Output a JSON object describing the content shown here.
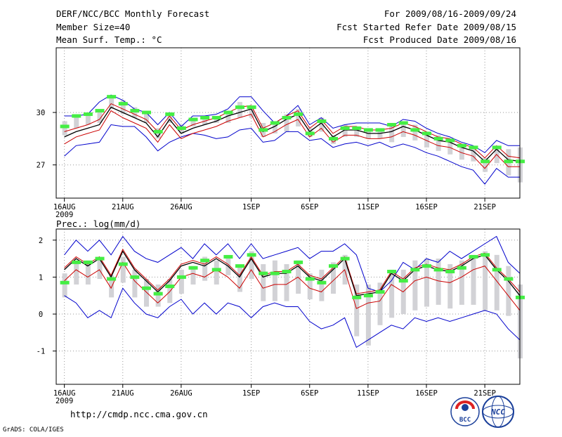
{
  "header": {
    "title": "DERF/NCC/BCC Monthly Forecast",
    "member_size": "Member Size=40",
    "temp_label": "Mean Surf. Temp.: °C",
    "forecast_period": "For 2009/08/16-2009/09/24",
    "started_date": "Fcst Started Refer Date 2009/08/15",
    "produced_date": "Fcst Produced Date 2009/08/16"
  },
  "footer": {
    "url": "http://cmdp.ncc.cma.gov.cn",
    "credit": "GrADS: COLA/IGES",
    "logo_bcc": "BCC",
    "logo_ncc": "NCC"
  },
  "colors": {
    "ensemble_max": "#0000cc",
    "ensemble_min": "#0000cc",
    "spread": "#cc0000",
    "mean": "#000000",
    "median": "#44ee44",
    "box": "#d2d2d6",
    "grid": "#999999"
  },
  "chart_data": [
    {
      "type": "line",
      "title": "Mean Surf. Temp.: °C",
      "xlabel": "",
      "ylabel": "",
      "ylim": [
        25.1,
        33.7
      ],
      "yticks": [
        27,
        30
      ],
      "xlim": [
        0.3,
        40
      ],
      "xticks": [
        {
          "x": 1,
          "label": "16AUG",
          "sub": "2009"
        },
        {
          "x": 6,
          "label": "21AUG"
        },
        {
          "x": 11,
          "label": "26AUG"
        },
        {
          "x": 17,
          "label": "1SEP"
        },
        {
          "x": 22,
          "label": "6SEP"
        },
        {
          "x": 27,
          "label": "11SEP"
        },
        {
          "x": 32,
          "label": "16SEP"
        },
        {
          "x": 37,
          "label": "21SEP"
        }
      ],
      "days": [
        1,
        2,
        3,
        4,
        5,
        6,
        7,
        8,
        9,
        10,
        11,
        12,
        13,
        14,
        15,
        16,
        17,
        18,
        19,
        20,
        21,
        22,
        23,
        24,
        25,
        26,
        27,
        28,
        29,
        30,
        31,
        32,
        33,
        34,
        35,
        36,
        37,
        38,
        39,
        40
      ],
      "series": [
        {
          "name": "max",
          "values": [
            29.8,
            29.8,
            29.9,
            30.6,
            31.0,
            30.7,
            30.2,
            30.0,
            29.3,
            30.0,
            29.2,
            29.8,
            29.8,
            29.9,
            30.2,
            30.9,
            30.9,
            30.1,
            29.4,
            29.8,
            30.4,
            29.3,
            29.7,
            29.1,
            29.3,
            29.4,
            29.4,
            29.4,
            29.2,
            29.6,
            29.5,
            29.1,
            28.8,
            28.6,
            28.3,
            28.1,
            27.7,
            28.4,
            28.1,
            28.1
          ]
        },
        {
          "name": "mean",
          "values": [
            28.6,
            28.9,
            29.1,
            29.3,
            30.3,
            30.0,
            29.7,
            29.4,
            28.6,
            29.6,
            28.8,
            29.1,
            29.3,
            29.5,
            29.8,
            30.0,
            30.2,
            28.9,
            29.2,
            29.6,
            29.9,
            28.9,
            29.4,
            28.6,
            29.0,
            29.0,
            28.8,
            28.8,
            28.9,
            29.2,
            29.0,
            28.7,
            28.4,
            28.3,
            28.0,
            27.8,
            27.2,
            27.9,
            27.3,
            27.2
          ]
        },
        {
          "name": "upper",
          "values": [
            28.9,
            29.1,
            29.3,
            29.6,
            30.5,
            30.2,
            29.9,
            29.6,
            28.9,
            29.8,
            29.0,
            29.3,
            29.5,
            29.7,
            30.0,
            30.3,
            30.4,
            29.1,
            29.4,
            29.8,
            30.1,
            29.1,
            29.6,
            28.8,
            29.2,
            29.2,
            29.0,
            29.0,
            29.1,
            29.4,
            29.2,
            28.9,
            28.6,
            28.5,
            28.2,
            28.0,
            27.4,
            28.1,
            27.5,
            27.4
          ]
        },
        {
          "name": "lower",
          "values": [
            28.2,
            28.6,
            28.8,
            29.0,
            30.1,
            29.7,
            29.4,
            29.1,
            28.3,
            29.3,
            28.5,
            28.8,
            29.0,
            29.2,
            29.5,
            29.7,
            29.9,
            28.6,
            28.9,
            29.3,
            29.6,
            28.6,
            29.1,
            28.3,
            28.7,
            28.7,
            28.5,
            28.5,
            28.6,
            28.9,
            28.7,
            28.4,
            28.1,
            28.0,
            27.7,
            27.5,
            26.8,
            27.6,
            26.9,
            26.9
          ]
        },
        {
          "name": "min",
          "values": [
            27.5,
            28.1,
            28.2,
            28.3,
            29.3,
            29.2,
            29.2,
            28.6,
            27.8,
            28.3,
            28.6,
            28.8,
            28.7,
            28.5,
            28.6,
            29.0,
            29.1,
            28.3,
            28.4,
            28.9,
            28.9,
            28.4,
            28.5,
            28.0,
            28.2,
            28.3,
            28.1,
            28.3,
            28.0,
            28.2,
            28.0,
            27.7,
            27.5,
            27.2,
            26.9,
            26.7,
            25.9,
            26.8,
            26.3,
            26.3
          ]
        },
        {
          "name": "median",
          "values": [
            29.2,
            29.8,
            29.9,
            30.1,
            30.9,
            30.5,
            30.1,
            30.0,
            28.9,
            29.9,
            29.1,
            29.6,
            29.7,
            29.7,
            30.0,
            30.3,
            30.3,
            29.0,
            29.4,
            29.7,
            29.9,
            28.8,
            29.5,
            28.5,
            29.1,
            29.1,
            29.0,
            29.0,
            29.3,
            29.4,
            29.0,
            28.8,
            28.5,
            28.4,
            28.1,
            28.0,
            27.2,
            28.0,
            27.2,
            27.2
          ]
        },
        {
          "name": "box_top",
          "values": [
            29.5,
            29.8,
            30.0,
            30.1,
            30.9,
            30.7,
            30.3,
            30.0,
            29.1,
            30.0,
            29.3,
            29.6,
            29.8,
            29.7,
            30.0,
            30.6,
            30.4,
            29.4,
            29.4,
            29.9,
            30.2,
            29.1,
            29.7,
            28.7,
            29.3,
            29.2,
            29.1,
            29.1,
            29.3,
            29.5,
            29.3,
            28.9,
            28.7,
            28.5,
            28.2,
            28.0,
            27.4,
            28.1,
            27.9,
            28.0
          ]
        },
        {
          "name": "box_bottom",
          "values": [
            28.7,
            29.1,
            29.3,
            29.4,
            30.2,
            29.9,
            29.7,
            29.4,
            28.5,
            29.4,
            28.8,
            29.2,
            29.3,
            29.4,
            29.4,
            29.7,
            29.7,
            28.6,
            28.8,
            28.9,
            29.2,
            28.6,
            28.9,
            28.2,
            28.6,
            28.6,
            28.5,
            28.5,
            28.3,
            28.6,
            28.4,
            28.0,
            27.8,
            27.6,
            27.3,
            27.2,
            26.6,
            27.1,
            26.4,
            26.0
          ]
        }
      ]
    },
    {
      "type": "line",
      "title": "Prec.: log(mm/d)",
      "xlabel": "",
      "ylabel": "",
      "ylim": [
        -1.9,
        2.3
      ],
      "yticks": [
        -1,
        0,
        1,
        2
      ],
      "xlim": [
        0.3,
        40
      ],
      "xticks": [
        {
          "x": 1,
          "label": "16AUG",
          "sub": "2009"
        },
        {
          "x": 6,
          "label": "21AUG"
        },
        {
          "x": 11,
          "label": "26AUG"
        },
        {
          "x": 17,
          "label": "1SEP"
        },
        {
          "x": 22,
          "label": "6SEP"
        },
        {
          "x": 27,
          "label": "11SEP"
        },
        {
          "x": 32,
          "label": "16SEP"
        },
        {
          "x": 37,
          "label": "21SEP"
        }
      ],
      "days": [
        1,
        2,
        3,
        4,
        5,
        6,
        7,
        8,
        9,
        10,
        11,
        12,
        13,
        14,
        15,
        16,
        17,
        18,
        19,
        20,
        21,
        22,
        23,
        24,
        25,
        26,
        27,
        28,
        29,
        30,
        31,
        32,
        33,
        34,
        35,
        36,
        37,
        38,
        39,
        40
      ],
      "series": [
        {
          "name": "max",
          "values": [
            1.6,
            2.0,
            1.7,
            2.0,
            1.6,
            2.1,
            1.7,
            1.5,
            1.4,
            1.6,
            1.8,
            1.5,
            1.9,
            1.6,
            1.9,
            1.5,
            1.9,
            1.5,
            1.6,
            1.7,
            1.8,
            1.5,
            1.7,
            1.7,
            1.9,
            1.6,
            0.7,
            0.6,
            0.9,
            1.4,
            1.2,
            1.5,
            1.4,
            1.7,
            1.5,
            1.7,
            1.9,
            2.1,
            1.4,
            1.1
          ]
        },
        {
          "name": "mean",
          "values": [
            1.2,
            1.5,
            1.3,
            1.5,
            1.0,
            1.7,
            1.2,
            0.9,
            0.6,
            0.9,
            1.3,
            1.4,
            1.3,
            1.5,
            1.3,
            1.0,
            1.5,
            1.0,
            1.1,
            1.1,
            1.3,
            1.0,
            0.9,
            1.2,
            1.5,
            0.5,
            0.55,
            0.6,
            1.1,
            0.9,
            1.2,
            1.3,
            1.2,
            1.15,
            1.3,
            1.5,
            1.6,
            1.2,
            0.9,
            0.5
          ]
        },
        {
          "name": "upper",
          "values": [
            1.25,
            1.55,
            1.35,
            1.55,
            1.05,
            1.75,
            1.25,
            0.95,
            0.65,
            0.95,
            1.35,
            1.45,
            1.35,
            1.55,
            1.35,
            1.05,
            1.55,
            1.05,
            1.15,
            1.15,
            1.35,
            1.05,
            0.95,
            1.25,
            1.55,
            0.55,
            0.6,
            0.65,
            1.15,
            0.95,
            1.25,
            1.35,
            1.25,
            1.2,
            1.35,
            1.55,
            1.65,
            1.25,
            0.95,
            0.6
          ]
        },
        {
          "name": "lower",
          "values": [
            0.9,
            1.2,
            1.0,
            1.2,
            0.7,
            1.4,
            0.9,
            0.6,
            0.3,
            0.6,
            1.0,
            1.1,
            1.0,
            1.2,
            1.0,
            0.7,
            1.2,
            0.7,
            0.8,
            0.8,
            1.0,
            0.7,
            0.6,
            0.9,
            1.2,
            0.15,
            0.3,
            0.35,
            0.8,
            0.6,
            0.9,
            1.0,
            0.9,
            0.85,
            1.0,
            1.2,
            1.3,
            0.9,
            0.5,
            0.1
          ]
        },
        {
          "name": "min",
          "values": [
            0.5,
            0.3,
            -0.1,
            0.1,
            -0.1,
            0.7,
            0.3,
            0.0,
            -0.1,
            0.2,
            0.4,
            0.0,
            0.3,
            0.0,
            0.3,
            0.2,
            -0.1,
            0.2,
            0.3,
            0.2,
            0.2,
            -0.2,
            -0.4,
            -0.3,
            -0.1,
            -0.9,
            -0.7,
            -0.5,
            -0.3,
            -0.4,
            -0.1,
            -0.2,
            -0.1,
            -0.2,
            -0.1,
            0.0,
            0.1,
            0.0,
            -0.4,
            -0.7
          ]
        },
        {
          "name": "median",
          "values": [
            0.85,
            1.4,
            1.4,
            1.5,
            0.95,
            1.35,
            1.0,
            0.7,
            0.55,
            0.75,
            1.0,
            1.25,
            1.45,
            1.2,
            1.55,
            1.3,
            1.6,
            1.1,
            1.1,
            1.15,
            1.4,
            0.95,
            0.85,
            1.3,
            1.5,
            0.45,
            0.5,
            0.6,
            1.15,
            0.9,
            1.2,
            1.3,
            1.2,
            1.15,
            1.25,
            1.55,
            1.6,
            1.2,
            0.95,
            0.45
          ]
        },
        {
          "name": "box_top",
          "values": [
            1.1,
            1.45,
            1.45,
            1.55,
            1.05,
            1.55,
            1.2,
            0.95,
            0.8,
            0.95,
            1.2,
            1.3,
            1.55,
            1.45,
            1.6,
            1.35,
            1.7,
            1.35,
            1.45,
            1.35,
            1.45,
            1.1,
            1.2,
            1.4,
            1.6,
            0.8,
            0.8,
            0.85,
            1.2,
            1.2,
            1.45,
            1.5,
            1.5,
            1.35,
            1.45,
            1.6,
            1.7,
            1.6,
            1.3,
            0.8
          ]
        },
        {
          "name": "box_bottom",
          "values": [
            0.45,
            0.8,
            0.8,
            0.95,
            0.45,
            0.85,
            0.45,
            0.2,
            0.2,
            0.3,
            0.55,
            0.8,
            0.9,
            0.8,
            1.05,
            0.6,
            0.95,
            0.35,
            0.35,
            0.35,
            0.55,
            0.4,
            0.35,
            0.55,
            0.8,
            -0.6,
            -0.85,
            -0.3,
            -0.1,
            0.0,
            0.1,
            0.2,
            0.25,
            0.15,
            0.25,
            0.25,
            0.1,
            0.1,
            -0.05,
            -1.2
          ]
        }
      ]
    }
  ]
}
